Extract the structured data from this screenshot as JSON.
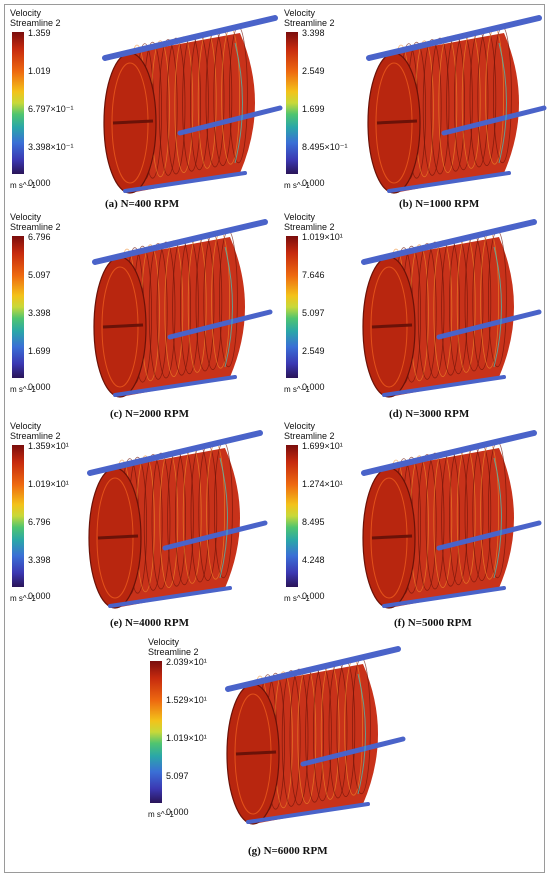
{
  "panels": [
    {
      "legend_title": "Velocity\nStreamline 2",
      "ticks": [
        "1.359",
        "1.019",
        "6.797×10⁻¹",
        "3.398×10⁻¹",
        "0.000"
      ],
      "unit": "m s^−1",
      "caption": "(a) N=400 RPM"
    },
    {
      "legend_title": "Velocity\nStreamline 2",
      "ticks": [
        "3.398",
        "2.549",
        "1.699",
        "8.495×10⁻¹",
        "0.000"
      ],
      "unit": "m s^−1",
      "caption": "(b) N=1000 RPM"
    },
    {
      "legend_title": "Velocity\nStreamline 2",
      "ticks": [
        "6.796",
        "5.097",
        "3.398",
        "1.699",
        "0.000"
      ],
      "unit": "m s^−1",
      "caption": "(c) N=2000 RPM"
    },
    {
      "legend_title": "Velocity\nStreamline 2",
      "ticks": [
        "1.019×10¹",
        "7.646",
        "5.097",
        "2.549",
        "0.000"
      ],
      "unit": "m s^−1",
      "caption": "(d) N=3000 RPM"
    },
    {
      "legend_title": "Velocity\nStreamline 2",
      "ticks": [
        "1.359×10¹",
        "1.019×10¹",
        "6.796",
        "3.398",
        "0.000"
      ],
      "unit": "m s^−1",
      "caption": "(e) N=4000 RPM"
    },
    {
      "legend_title": "Velocity\nStreamline 2",
      "ticks": [
        "1.699×10¹",
        "1.274×10¹",
        "8.495",
        "4.248",
        "0.000"
      ],
      "unit": "m s^−1",
      "caption": "(f) N=5000 RPM"
    },
    {
      "legend_title": "Velocity\nStreamline 2",
      "ticks": [
        "2.039×10¹",
        "1.529×10¹",
        "1.019×10¹",
        "5.097",
        "0.000"
      ],
      "unit": "m s^−1",
      "caption": "(g) N=6000 RPM"
    }
  ],
  "colors": {
    "streamline_red": "#c8321a",
    "streamline_dark": "#6b1208",
    "blade_blue": "#4a63c9"
  }
}
